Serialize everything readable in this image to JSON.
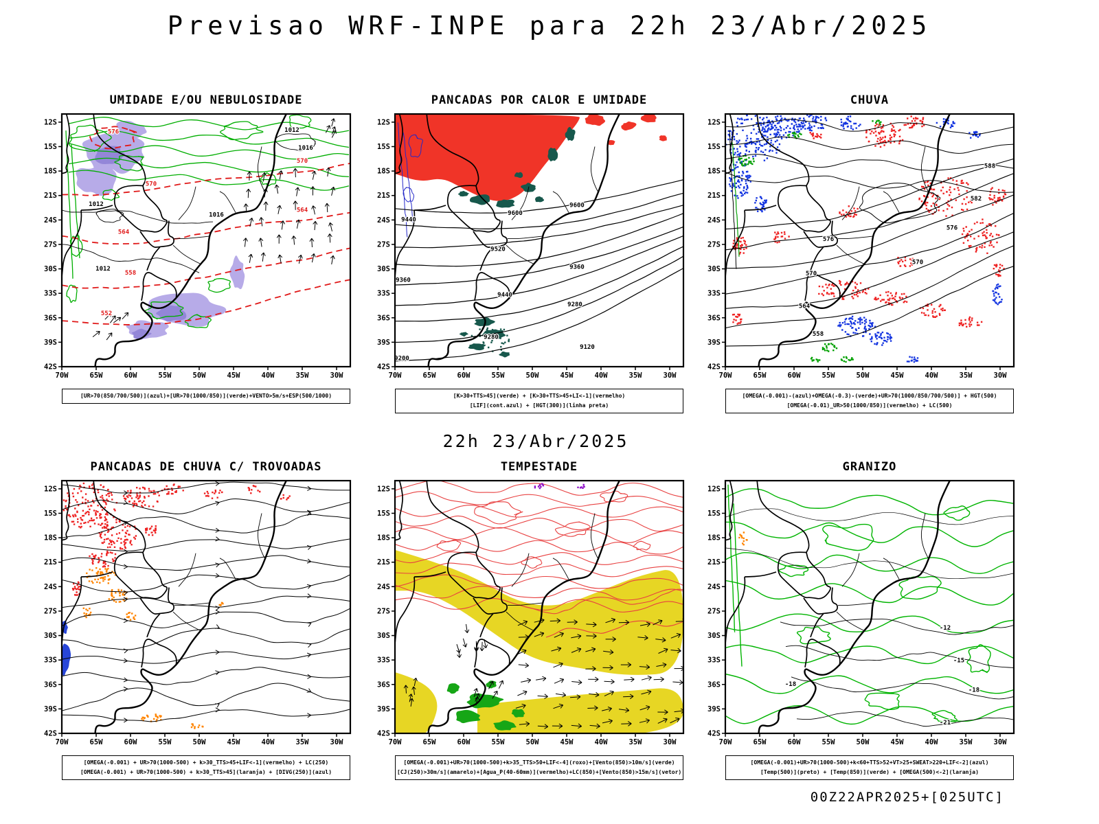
{
  "page": {
    "title": "Previsao WRF-INPE  para 22h 23/Abr/2025",
    "mid_label": "22h 23/Abr/2025",
    "footer": "00Z22APR2025+[025UTC]"
  },
  "axes": {
    "y_ticks": [
      "12S",
      "15S",
      "18S",
      "21S",
      "24S",
      "27S",
      "30S",
      "33S",
      "36S",
      "39S",
      "42S"
    ],
    "x_ticks": [
      "70W",
      "65W",
      "60W",
      "55W",
      "50W",
      "45W",
      "40W",
      "35W",
      "30W"
    ],
    "lon_range": [
      "70W",
      "30W"
    ],
    "lat_range": [
      "12S",
      "42S"
    ]
  },
  "colors": {
    "azul": "#1334e0",
    "verde": "#00a000",
    "vermelho": "#ee2222",
    "laranja": "#ff8400",
    "amarelo": "#e7d624",
    "roxo": "#9012c8",
    "preto": "#000000",
    "lilas": "#b7abe8",
    "verde_escuro": "#17584c"
  },
  "panels": [
    {
      "id": "umidade-nebulosidade",
      "title": "UMIDADE E/OU NEBULOSIDADE",
      "caption_lines": [
        "[UR>70(850/700/500)](azul)+[UR>70(1000/850)](verde)+VENTO>5m/s+ESP(500/1000)"
      ],
      "contour_labels": [
        {
          "text": "576",
          "lon": -62.5,
          "lat": -13.4,
          "color": "#e01818"
        },
        {
          "text": "570",
          "lon": -57,
          "lat": -19.8,
          "color": "#e01818"
        },
        {
          "text": "570",
          "lon": -35,
          "lat": -17,
          "color": "#e01818"
        },
        {
          "text": "564",
          "lon": -61,
          "lat": -25.7,
          "color": "#e01818"
        },
        {
          "text": "564",
          "lon": -35,
          "lat": -23,
          "color": "#e01818"
        },
        {
          "text": "558",
          "lon": -60,
          "lat": -30.7,
          "color": "#e01818"
        },
        {
          "text": "552",
          "lon": -63.5,
          "lat": -35.7,
          "color": "#e01818"
        },
        {
          "text": "1012",
          "lon": -65,
          "lat": -22.3
        },
        {
          "text": "1012",
          "lon": -64,
          "lat": -30.2
        },
        {
          "text": "1016",
          "lon": -47.5,
          "lat": -23.6
        },
        {
          "text": "1012",
          "lon": -36.5,
          "lat": -13.2
        },
        {
          "text": "1016",
          "lon": -34.5,
          "lat": -15.4
        }
      ]
    },
    {
      "id": "pancadas-calor-umidade",
      "title": "PANCADAS POR CALOR E UMIDADE",
      "caption_lines": [
        "[K>30+TTS>45](verde) + [K>30+TTS>45+LI<-1](vermelho)",
        "[LIF](cont.azul) + [HGT(300)](linha preta)"
      ],
      "contour_labels": [
        {
          "text": "9600",
          "lon": -52.5,
          "lat": -23.4
        },
        {
          "text": "9600",
          "lon": -43.5,
          "lat": -22.4
        },
        {
          "text": "9520",
          "lon": -55,
          "lat": -27.8
        },
        {
          "text": "9440",
          "lon": -68,
          "lat": -24.2
        },
        {
          "text": "9440",
          "lon": -54,
          "lat": -33.4
        },
        {
          "text": "9360",
          "lon": -43.5,
          "lat": -30
        },
        {
          "text": "9360",
          "lon": -68.8,
          "lat": -31.6
        },
        {
          "text": "9280",
          "lon": -56,
          "lat": -38.6
        },
        {
          "text": "9280",
          "lon": -43.8,
          "lat": -34.6
        },
        {
          "text": "9120",
          "lon": -42,
          "lat": -39.8
        },
        {
          "text": "9200",
          "lon": -69,
          "lat": -41.2
        }
      ]
    },
    {
      "id": "chuva",
      "title": "CHUVA",
      "caption_lines": [
        "[OMEGA(-0.001)-(azul)+OMEGA(-0.3)-(verde)+UR>70(1000/850/700/500)] + HGT(500)",
        "[OMEGA(-0.01)_UR>50(1000/850)](vermelho) + LC(500)"
      ],
      "contour_labels": [
        {
          "text": "588",
          "lon": -31.5,
          "lat": -17.6
        },
        {
          "text": "582",
          "lon": -33.5,
          "lat": -21.6
        },
        {
          "text": "576",
          "lon": -55,
          "lat": -26.6
        },
        {
          "text": "576",
          "lon": -37,
          "lat": -25.2
        },
        {
          "text": "570",
          "lon": -57.5,
          "lat": -30.8
        },
        {
          "text": "570",
          "lon": -42,
          "lat": -29.4
        },
        {
          "text": "564",
          "lon": -58.5,
          "lat": -34.8
        },
        {
          "text": "558",
          "lon": -56.5,
          "lat": -38.2
        }
      ]
    },
    {
      "id": "pancadas-chuva-trovoadas",
      "title": "PANCADAS DE CHUVA C/ TROVOADAS",
      "caption_lines": [
        "[OMEGA(-0.001) + UR>70(1000-500) + k>30_TTS>45+LIF<-1](vermelho) + LC(250)",
        "[OMEGA(-0.001) + UR>70(1000-500) + k>30_TTS>45](laranja) + [DIVG(250)](azul)"
      ],
      "contour_labels": []
    },
    {
      "id": "tempestade",
      "title": "TEMPESTADE",
      "caption_lines": [
        "[OMEGA(-0.001)+UR>70(1000-500)+k>35_TTS>50+LIF<-4](roxo)+[Vento(850)>10m/s](verde)",
        "[CJ(250)>30m/s](amarelo)+[Agua_P(40-60mm)](vermelho)+LC(850)+[Vento(850)>15m/s](vetor)"
      ],
      "contour_labels": []
    },
    {
      "id": "granizo",
      "title": "GRANIZO",
      "caption_lines": [
        "[OMEGA(-0.001)+UR>70(1000-500)+k<60+TTS>52+VT>25+SWEAT>220+LIF<-2](azul)",
        "[Temp(500)](preto) + [Temp(850)](verde) + [OMEGA(500)<-2](laranja)"
      ],
      "contour_labels": [
        {
          "text": "-12",
          "lon": -38,
          "lat": -29.3
        },
        {
          "text": "-15",
          "lon": -36,
          "lat": -33.3
        },
        {
          "text": "-18",
          "lon": -33.8,
          "lat": -36.9
        },
        {
          "text": "-18",
          "lon": -60.5,
          "lat": -36.2
        },
        {
          "text": "-21",
          "lon": -38,
          "lat": -40.9
        }
      ]
    }
  ]
}
